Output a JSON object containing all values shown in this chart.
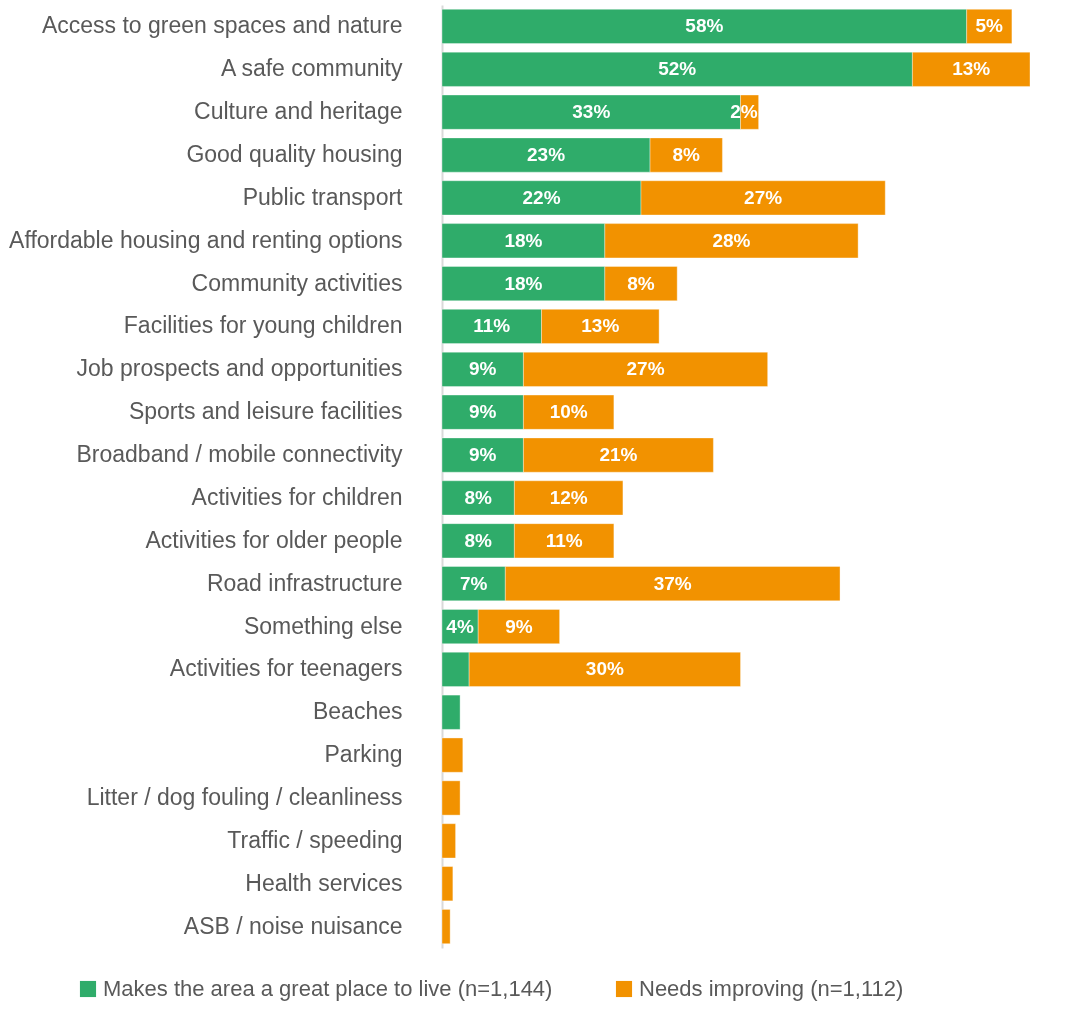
{
  "chart_data": {
    "type": "bar",
    "orientation": "horizontal",
    "stacked": true,
    "categories": [
      "Access to green spaces and nature",
      "A safe community",
      "Culture and heritage",
      "Good quality housing",
      "Public transport",
      "Affordable housing and renting options",
      "Community activities",
      "Facilities for young children",
      "Job prospects and opportunities",
      "Sports and leisure facilities",
      "Broadband / mobile connectivity",
      "Activities for children",
      "Activities for older people",
      "Road infrastructure",
      "Something else",
      "Activities for teenagers",
      "Beaches",
      "Parking",
      "Litter / dog fouling / cleanliness",
      "Traffic / speeding",
      "Health services",
      "ASB / noise nuisance"
    ],
    "series": [
      {
        "name": "Makes the area a great place to live (n=1,144)",
        "color": "#2fac6a",
        "values": [
          58,
          52,
          33,
          23,
          22,
          18,
          18,
          11,
          9,
          9,
          9,
          8,
          8,
          7,
          4,
          3,
          2,
          null,
          null,
          null,
          null,
          null
        ],
        "value_labels": [
          "58%",
          "52%",
          "33%",
          "23%",
          "22%",
          "18%",
          "18%",
          "11%",
          "9%",
          "9%",
          "9%",
          "8%",
          "8%",
          "7%",
          "4%",
          null,
          null,
          null,
          null,
          null,
          null,
          null
        ]
      },
      {
        "name": "Needs improving (n=1,112)",
        "color": "#f29200",
        "values": [
          5,
          13,
          2,
          8,
          27,
          28,
          8,
          13,
          27,
          10,
          21,
          12,
          11,
          37,
          9,
          30,
          null,
          2.3,
          2,
          1.5,
          1.2,
          0.9
        ],
        "value_labels": [
          "5%",
          "13%",
          "2%",
          "8%",
          "27%",
          "28%",
          "8%",
          "13%",
          "27%",
          "10%",
          "21%",
          "12%",
          "11%",
          "37%",
          "9%",
          "30%",
          null,
          null,
          null,
          null,
          null,
          null
        ]
      }
    ],
    "legend": "bottom",
    "tick_labels": "y"
  }
}
